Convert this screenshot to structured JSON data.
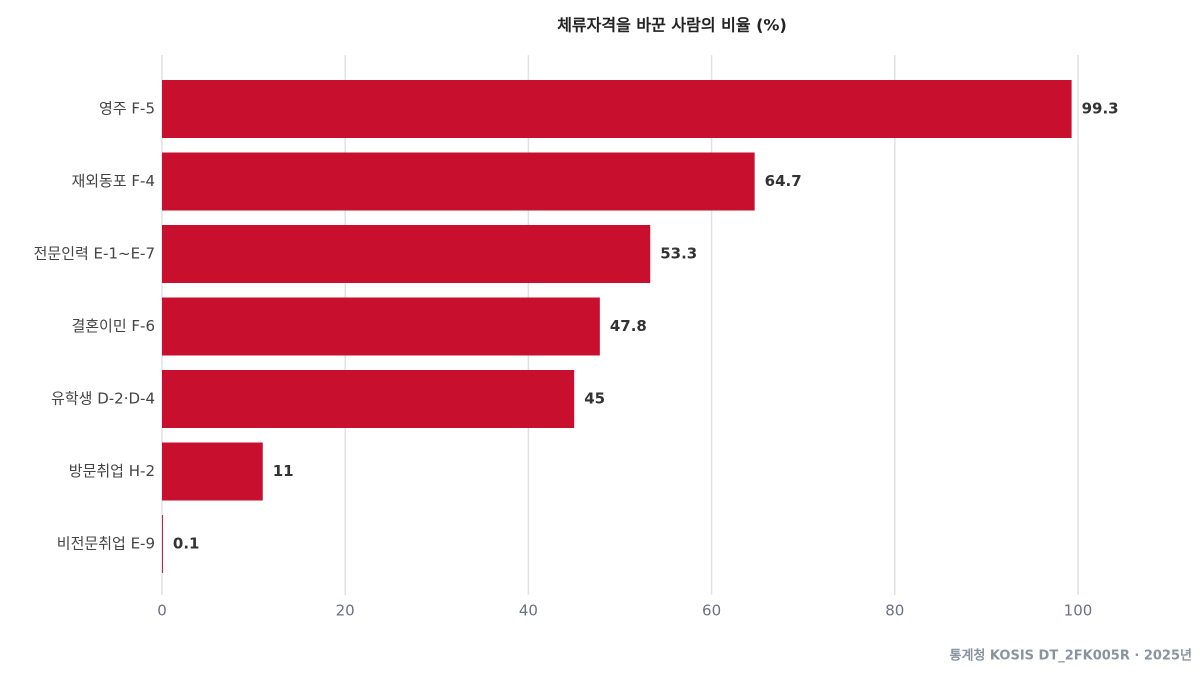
{
  "chart_data": {
    "type": "bar",
    "orientation": "horizontal",
    "title": "체류자격을 바꾼 사람의 비율 (%)",
    "categories": [
      "영주 F-5",
      "재외동포 F-4",
      "전문인력 E-1~E-7",
      "결혼이민 F-6",
      "유학생 D-2·D-4",
      "방문취업 H-2",
      "비전문취업 E-9"
    ],
    "values": [
      99.3,
      64.7,
      53.3,
      47.8,
      45,
      11,
      0.1
    ],
    "color": "#c8102e",
    "xlim": [
      0,
      100
    ],
    "xticks": [
      0,
      20,
      40,
      60,
      80,
      100
    ],
    "grid": true,
    "source": "통계청 KOSIS DT_2FK005R · 2025년"
  }
}
